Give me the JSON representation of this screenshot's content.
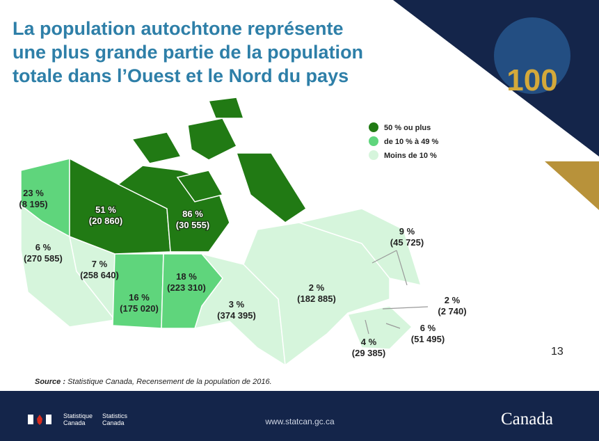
{
  "title_lines": [
    "La population autochtone représente",
    "une plus grande partie de la population",
    "totale dans l’Ouest et le Nord du pays"
  ],
  "legend": [
    {
      "label": "50 % ou plus",
      "color": "#217a14"
    },
    {
      "label": "de 10 % à 49 %",
      "color": "#5fd57c"
    },
    {
      "label": "Moins de 10 %",
      "color": "#d6f5dc"
    }
  ],
  "regions": [
    {
      "percent": "23 %",
      "count": "(8 195)"
    },
    {
      "percent": "51 %",
      "count": "(20 860)"
    },
    {
      "percent": "86 %",
      "count": "(30 555)"
    },
    {
      "percent": "6 %",
      "count": "(270 585)"
    },
    {
      "percent": "7 %",
      "count": "(258 640)"
    },
    {
      "percent": "16 %",
      "count": "(175 020)"
    },
    {
      "percent": "18 %",
      "count": "(223 310)"
    },
    {
      "percent": "3 %",
      "count": "(374 395)"
    },
    {
      "percent": "2 %",
      "count": "(182 885)"
    },
    {
      "percent": "9 %",
      "count": "(45 725)"
    },
    {
      "percent": "2 %",
      "count": "(2 740)"
    },
    {
      "percent": "6 %",
      "count": "(51 495)"
    },
    {
      "percent": "4 %",
      "count": "(29 385)"
    }
  ],
  "page_number": "13",
  "source_label": "Source :",
  "source_text": "Statistique Canada, Recensement de la population de 2016.",
  "footer": {
    "fip_fr": [
      "Statistique",
      "Canada"
    ],
    "fip_en": [
      "Statistics",
      "Canada"
    ],
    "url": "www.statcan.gc.ca",
    "wordmark": "Canada"
  }
}
